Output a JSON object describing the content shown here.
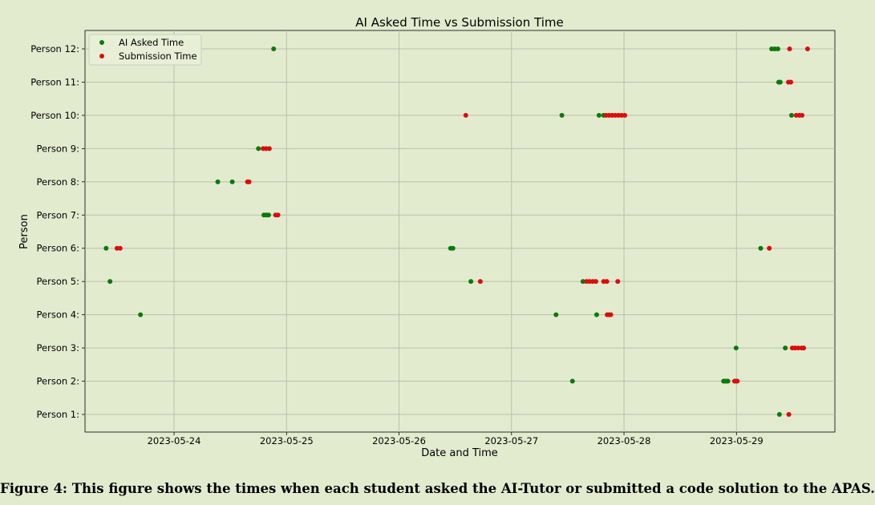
{
  "chart_data": {
    "type": "scatter",
    "title": "AI Asked Time vs Submission Time",
    "xlabel": "Date and Time",
    "ylabel": "Person",
    "x_ticks": [
      "2023-05-24",
      "2023-05-25",
      "2023-05-26",
      "2023-05-27",
      "2023-05-28",
      "2023-05-29"
    ],
    "xlim": [
      "2023-05-23T05:00",
      "2023-05-29T21:00"
    ],
    "categories": [
      "Person 1:",
      "Person 2:",
      "Person 3:",
      "Person 4:",
      "Person 5:",
      "Person 6:",
      "Person 7:",
      "Person 8:",
      "Person 9:",
      "Person 10:",
      "Person 11:",
      "Person 12:"
    ],
    "grid": true,
    "legend_position": "top-left",
    "series": [
      {
        "name": "AI Asked Time",
        "color": "#0a7a0a",
        "points": [
          {
            "x": "2023-05-29T09:10",
            "y": "Person 1:"
          },
          {
            "x": "2023-05-27T13:00",
            "y": "Person 2:"
          },
          {
            "x": "2023-05-28T21:15",
            "y": "Person 2:"
          },
          {
            "x": "2023-05-28T21:35",
            "y": "Person 2:"
          },
          {
            "x": "2023-05-28T21:55",
            "y": "Person 2:"
          },
          {
            "x": "2023-05-28T22:10",
            "y": "Person 2:"
          },
          {
            "x": "2023-05-28T23:55",
            "y": "Person 3:"
          },
          {
            "x": "2023-05-29T10:25",
            "y": "Person 3:"
          },
          {
            "x": "2023-05-23T16:50",
            "y": "Person 4:"
          },
          {
            "x": "2023-05-27T09:30",
            "y": "Person 4:"
          },
          {
            "x": "2023-05-27T18:10",
            "y": "Person 4:"
          },
          {
            "x": "2023-05-23T10:20",
            "y": "Person 5:"
          },
          {
            "x": "2023-05-26T15:20",
            "y": "Person 5:"
          },
          {
            "x": "2023-05-27T15:15",
            "y": "Person 5:"
          },
          {
            "x": "2023-05-23T09:30",
            "y": "Person 6:"
          },
          {
            "x": "2023-05-26T11:00",
            "y": "Person 6:"
          },
          {
            "x": "2023-05-26T11:30",
            "y": "Person 6:"
          },
          {
            "x": "2023-05-29T05:10",
            "y": "Person 6:"
          },
          {
            "x": "2023-05-24T19:10",
            "y": "Person 7:"
          },
          {
            "x": "2023-05-24T19:40",
            "y": "Person 7:"
          },
          {
            "x": "2023-05-24T20:10",
            "y": "Person 7:"
          },
          {
            "x": "2023-05-24T09:20",
            "y": "Person 8:"
          },
          {
            "x": "2023-05-24T12:25",
            "y": "Person 8:"
          },
          {
            "x": "2023-05-24T18:00",
            "y": "Person 9:"
          },
          {
            "x": "2023-05-27T10:45",
            "y": "Person 10:"
          },
          {
            "x": "2023-05-27T18:40",
            "y": "Person 10:"
          },
          {
            "x": "2023-05-27T19:40",
            "y": "Person 10:"
          },
          {
            "x": "2023-05-29T11:45",
            "y": "Person 10:"
          },
          {
            "x": "2023-05-29T09:00",
            "y": "Person 11:"
          },
          {
            "x": "2023-05-29T09:20",
            "y": "Person 11:"
          },
          {
            "x": "2023-05-24T21:15",
            "y": "Person 12:"
          },
          {
            "x": "2023-05-29T07:30",
            "y": "Person 12:"
          },
          {
            "x": "2023-05-29T08:10",
            "y": "Person 12:"
          },
          {
            "x": "2023-05-29T08:50",
            "y": "Person 12:"
          }
        ]
      },
      {
        "name": "Submission Time",
        "color": "#dd0c0c",
        "points": [
          {
            "x": "2023-05-29T11:10",
            "y": "Person 1:"
          },
          {
            "x": "2023-05-28T23:35",
            "y": "Person 2:"
          },
          {
            "x": "2023-05-28T23:55",
            "y": "Person 2:"
          },
          {
            "x": "2023-05-29T00:10",
            "y": "Person 2:"
          },
          {
            "x": "2023-05-29T11:55",
            "y": "Person 3:"
          },
          {
            "x": "2023-05-29T12:30",
            "y": "Person 3:"
          },
          {
            "x": "2023-05-29T13:10",
            "y": "Person 3:"
          },
          {
            "x": "2023-05-29T13:55",
            "y": "Person 3:"
          },
          {
            "x": "2023-05-29T14:20",
            "y": "Person 3:"
          },
          {
            "x": "2023-05-27T20:25",
            "y": "Person 4:"
          },
          {
            "x": "2023-05-27T20:50",
            "y": "Person 4:"
          },
          {
            "x": "2023-05-27T21:10",
            "y": "Person 4:"
          },
          {
            "x": "2023-05-26T17:20",
            "y": "Person 5:"
          },
          {
            "x": "2023-05-27T16:00",
            "y": "Person 5:"
          },
          {
            "x": "2023-05-27T16:40",
            "y": "Person 5:"
          },
          {
            "x": "2023-05-27T17:20",
            "y": "Person 5:"
          },
          {
            "x": "2023-05-27T18:00",
            "y": "Person 5:"
          },
          {
            "x": "2023-05-27T19:40",
            "y": "Person 5:"
          },
          {
            "x": "2023-05-27T20:20",
            "y": "Person 5:"
          },
          {
            "x": "2023-05-27T22:40",
            "y": "Person 5:"
          },
          {
            "x": "2023-05-23T11:50",
            "y": "Person 6:"
          },
          {
            "x": "2023-05-23T12:30",
            "y": "Person 6:"
          },
          {
            "x": "2023-05-29T07:00",
            "y": "Person 6:"
          },
          {
            "x": "2023-05-24T21:40",
            "y": "Person 7:"
          },
          {
            "x": "2023-05-24T22:10",
            "y": "Person 7:"
          },
          {
            "x": "2023-05-24T15:40",
            "y": "Person 8:"
          },
          {
            "x": "2023-05-24T16:00",
            "y": "Person 8:"
          },
          {
            "x": "2023-05-24T19:00",
            "y": "Person 9:"
          },
          {
            "x": "2023-05-24T19:40",
            "y": "Person 9:"
          },
          {
            "x": "2023-05-24T20:20",
            "y": "Person 9:"
          },
          {
            "x": "2023-05-26T14:15",
            "y": "Person 10:"
          },
          {
            "x": "2023-05-27T20:10",
            "y": "Person 10:"
          },
          {
            "x": "2023-05-27T20:50",
            "y": "Person 10:"
          },
          {
            "x": "2023-05-27T21:30",
            "y": "Person 10:"
          },
          {
            "x": "2023-05-27T22:10",
            "y": "Person 10:"
          },
          {
            "x": "2023-05-27T22:50",
            "y": "Person 10:"
          },
          {
            "x": "2023-05-27T23:30",
            "y": "Person 10:"
          },
          {
            "x": "2023-05-28T00:10",
            "y": "Person 10:"
          },
          {
            "x": "2023-05-29T12:45",
            "y": "Person 10:"
          },
          {
            "x": "2023-05-29T13:25",
            "y": "Person 10:"
          },
          {
            "x": "2023-05-29T14:00",
            "y": "Person 10:"
          },
          {
            "x": "2023-05-29T11:05",
            "y": "Person 11:"
          },
          {
            "x": "2023-05-29T11:35",
            "y": "Person 11:"
          },
          {
            "x": "2023-05-29T11:20",
            "y": "Person 12:"
          },
          {
            "x": "2023-05-29T15:10",
            "y": "Person 12:"
          }
        ]
      }
    ]
  },
  "caption": "Figure 4: This figure shows the times when each student asked the AI-Tutor or submitted a code solution to the APAS."
}
